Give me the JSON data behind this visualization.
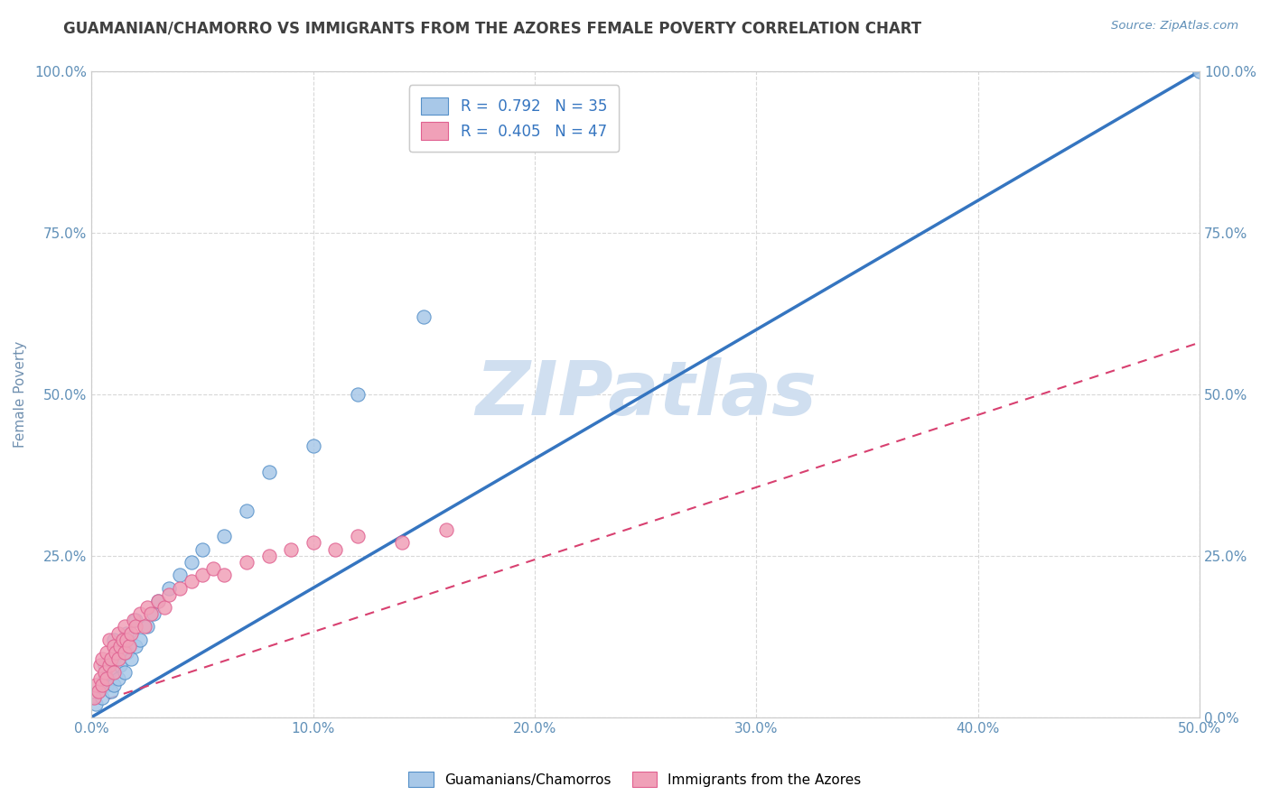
{
  "title": "GUAMANIAN/CHAMORRO VS IMMIGRANTS FROM THE AZORES FEMALE POVERTY CORRELATION CHART",
  "source_text": "Source: ZipAtlas.com",
  "ylabel": "Female Poverty",
  "xlim": [
    0.0,
    0.5
  ],
  "ylim": [
    0.0,
    1.0
  ],
  "xtick_labels": [
    "0.0%",
    "10.0%",
    "20.0%",
    "30.0%",
    "40.0%",
    "50.0%"
  ],
  "xtick_vals": [
    0.0,
    0.1,
    0.2,
    0.3,
    0.4,
    0.5
  ],
  "ytick_labels": [
    "",
    "25.0%",
    "50.0%",
    "75.0%",
    "100.0%"
  ],
  "ytick_right_labels": [
    "0.0%",
    "25.0%",
    "50.0%",
    "75.0%",
    "100.0%"
  ],
  "ytick_vals": [
    0.0,
    0.25,
    0.5,
    0.75,
    1.0
  ],
  "blue_R": 0.792,
  "blue_N": 35,
  "pink_R": 0.405,
  "pink_N": 47,
  "blue_color": "#a8c8e8",
  "pink_color": "#f0a0b8",
  "blue_edge_color": "#5590c8",
  "pink_edge_color": "#e06090",
  "blue_line_color": "#3575c0",
  "pink_line_color": "#d84070",
  "title_color": "#404040",
  "axis_label_color": "#7090b0",
  "tick_label_color": "#6090b8",
  "watermark_color": "#d0dff0",
  "background_color": "#ffffff",
  "grid_color": "#d8d8d8",
  "blue_scatter_x": [
    0.002,
    0.003,
    0.005,
    0.006,
    0.006,
    0.007,
    0.008,
    0.009,
    0.01,
    0.01,
    0.01,
    0.012,
    0.013,
    0.013,
    0.015,
    0.016,
    0.016,
    0.018,
    0.02,
    0.02,
    0.022,
    0.025,
    0.028,
    0.03,
    0.035,
    0.04,
    0.045,
    0.05,
    0.06,
    0.07,
    0.08,
    0.1,
    0.12,
    0.15,
    0.5
  ],
  "blue_scatter_y": [
    0.02,
    0.04,
    0.03,
    0.06,
    0.08,
    0.05,
    0.07,
    0.04,
    0.05,
    0.09,
    0.12,
    0.06,
    0.1,
    0.08,
    0.07,
    0.1,
    0.13,
    0.09,
    0.11,
    0.15,
    0.12,
    0.14,
    0.16,
    0.18,
    0.2,
    0.22,
    0.24,
    0.26,
    0.28,
    0.32,
    0.38,
    0.42,
    0.5,
    0.62,
    1.0
  ],
  "pink_scatter_x": [
    0.001,
    0.002,
    0.003,
    0.004,
    0.004,
    0.005,
    0.005,
    0.006,
    0.007,
    0.007,
    0.008,
    0.008,
    0.009,
    0.01,
    0.01,
    0.011,
    0.012,
    0.012,
    0.013,
    0.014,
    0.015,
    0.015,
    0.016,
    0.017,
    0.018,
    0.019,
    0.02,
    0.022,
    0.024,
    0.025,
    0.027,
    0.03,
    0.033,
    0.035,
    0.04,
    0.045,
    0.05,
    0.055,
    0.06,
    0.07,
    0.08,
    0.09,
    0.1,
    0.11,
    0.12,
    0.14,
    0.16
  ],
  "pink_scatter_y": [
    0.03,
    0.05,
    0.04,
    0.06,
    0.08,
    0.05,
    0.09,
    0.07,
    0.06,
    0.1,
    0.08,
    0.12,
    0.09,
    0.07,
    0.11,
    0.1,
    0.09,
    0.13,
    0.11,
    0.12,
    0.1,
    0.14,
    0.12,
    0.11,
    0.13,
    0.15,
    0.14,
    0.16,
    0.14,
    0.17,
    0.16,
    0.18,
    0.17,
    0.19,
    0.2,
    0.21,
    0.22,
    0.23,
    0.22,
    0.24,
    0.25,
    0.26,
    0.27,
    0.26,
    0.28,
    0.27,
    0.29
  ],
  "blue_line_x": [
    0.0,
    0.5
  ],
  "blue_line_y": [
    0.0,
    1.0
  ],
  "pink_line_x": [
    0.0,
    0.5
  ],
  "pink_line_y": [
    0.02,
    0.58
  ],
  "legend_blue_label": "R =  0.792   N = 35",
  "legend_pink_label": "R =  0.405   N = 47",
  "legend_blue_series": "Guamanians/Chamorros",
  "legend_pink_series": "Immigrants from the Azores"
}
